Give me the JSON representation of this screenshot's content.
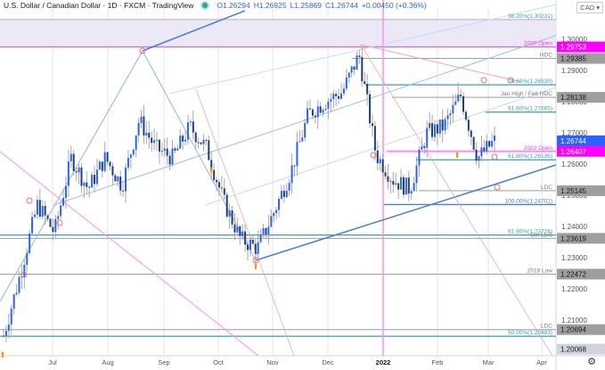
{
  "header": {
    "title": "U.S. Dollar / Canadian Dollar · 1D · FXCM · TradingView",
    "open": "O1.26294",
    "high": "H1.26925",
    "low": "L1.25869",
    "close": "C1.26744",
    "change": "+0.00450 (+0.36%)"
  },
  "currency_button": "CAD",
  "settings_icon": "gear-icon",
  "colors": {
    "up_candle": "#2962ff",
    "down_candle": "#1e3f7a",
    "fib_line": "#3a9fb0",
    "pink_line": "#ff00ff",
    "grey_line": "#9e9e9e",
    "channel_blue": "#4a7fd4",
    "last_price": "#2962ff",
    "highlight_price": "#ff00ff"
  },
  "chart_data": {
    "type": "candlestick",
    "title": "U.S. Dollar / Canadian Dollar · 1D · FXCM",
    "xlabel": "",
    "ylabel": "Price",
    "ylim": [
      1.2,
      1.303
    ],
    "x_ticks": [
      "Jul",
      "Aug",
      "Sep",
      "Oct",
      "Nov",
      "Dec",
      "2022",
      "Feb",
      "Mar",
      "Apr"
    ],
    "y_ticks": [
      1.2,
      1.21,
      1.22,
      1.23,
      1.24,
      1.25,
      1.26,
      1.27,
      1.28,
      1.29,
      1.3
    ],
    "price_labels": [
      {
        "value": "1.29753",
        "style": "magenta"
      },
      {
        "value": "1.29385",
        "style": "grey"
      },
      {
        "value": "1.28138",
        "style": "grey"
      },
      {
        "value": "1.26744",
        "style": "blue"
      },
      {
        "value": "1.26407",
        "style": "magenta"
      },
      {
        "value": "1.25145",
        "style": "grey"
      },
      {
        "value": "1.23619",
        "style": "grey"
      },
      {
        "value": "1.22472",
        "style": "grey"
      },
      {
        "value": "1.20694",
        "style": "grey"
      },
      {
        "value": "1.20068",
        "style": "light-grey"
      }
    ],
    "annotations": [
      {
        "text": "38.20%(1.30231)",
        "price": 1.30231
      },
      {
        "text": "2020 Open",
        "price": 1.29753
      },
      {
        "text": "HDC",
        "price": 1.29385
      },
      {
        "text": "78.60%(1.28539)",
        "price": 1.28539
      },
      {
        "text": "Jan High / Feb HDC",
        "price": 1.28138
      },
      {
        "text": "61.80%(1.27665)",
        "price": 1.27665
      },
      {
        "text": "2022 Open",
        "price": 1.26407
      },
      {
        "text": "61.80%(1.26136)",
        "price": 1.26136
      },
      {
        "text": "LDC",
        "price": 1.25145
      },
      {
        "text": "100.00%(1.24702)",
        "price": 1.24702
      },
      {
        "text": "61.80%(1.23724)",
        "price": 1.23724
      },
      {
        "text": "Oct LDC",
        "price": 1.23619
      },
      {
        "text": "2018 Low",
        "price": 1.22472
      },
      {
        "text": "LDC",
        "price": 1.20694
      },
      {
        "text": "50.00%(1.20483)",
        "price": 1.20483
      }
    ],
    "series": [
      {
        "name": "USD/CAD close (approx)",
        "x": [
          "Jun 1",
          "Jun 15",
          "Jun 25",
          "Jul 1",
          "Jul 10",
          "Jul 20",
          "Aug 1",
          "Aug 10",
          "Aug 20",
          "Aug 25",
          "Sep 5",
          "Sep 20",
          "Oct 1",
          "Oct 10",
          "Oct 20",
          "Oct 25",
          "Nov 5",
          "Nov 15",
          "Nov 25",
          "Dec 5",
          "Dec 15",
          "Dec 20",
          "Dec 31",
          "Jan 10",
          "Jan 20",
          "Feb 1",
          "Feb 15",
          "Feb 24",
          "Mar 1",
          "Mar 3"
        ],
        "values": [
          1.205,
          1.225,
          1.247,
          1.238,
          1.262,
          1.252,
          1.262,
          1.253,
          1.274,
          1.265,
          1.262,
          1.272,
          1.265,
          1.248,
          1.236,
          1.233,
          1.245,
          1.258,
          1.276,
          1.28,
          1.283,
          1.295,
          1.263,
          1.255,
          1.252,
          1.27,
          1.272,
          1.282,
          1.262,
          1.2674
        ]
      }
    ],
    "legend_position": "none",
    "grid": true
  }
}
